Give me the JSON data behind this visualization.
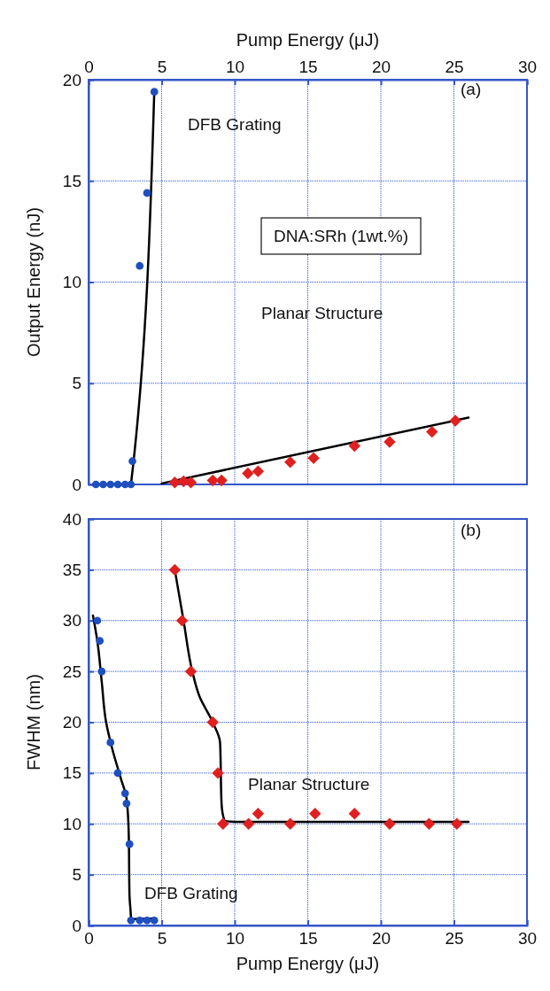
{
  "chart_data": [
    {
      "type": "scatter",
      "xlabel": "Pump Energy (μJ)",
      "ylabel": "Output Energy (nJ)",
      "xlim": [
        0,
        30
      ],
      "xticks": [
        0,
        5,
        10,
        15,
        20,
        25,
        30
      ],
      "ylim": [
        0,
        20
      ],
      "yticks": [
        0,
        5,
        10,
        15,
        20
      ],
      "grid": true,
      "series": [
        {
          "type": "scatter",
          "marker": "circle",
          "color": "#1f4fbf",
          "x": [
            0.5,
            1.0,
            1.5,
            2.0,
            2.5,
            2.9,
            3.0,
            3.5,
            4.0,
            4.5
          ],
          "values": [
            0,
            0,
            0,
            0,
            0,
            0,
            1.15,
            10.8,
            14.4,
            19.4
          ]
        },
        {
          "type": "scatter",
          "marker": "diamond",
          "color": "#e02020",
          "x": [
            5.9,
            6.5,
            7.0,
            8.5,
            9.1,
            10.9,
            11.6,
            13.8,
            15.4,
            18.2,
            20.6,
            23.5,
            25.1
          ],
          "values": [
            0.1,
            0.15,
            0.1,
            0.2,
            0.2,
            0.55,
            0.65,
            1.1,
            1.3,
            1.9,
            2.1,
            2.6,
            3.15
          ]
        },
        {
          "type": "line",
          "marker": "none",
          "color": "#000000",
          "x": [
            0.5,
            2.9,
            4.5
          ],
          "values": [
            0,
            0,
            19.5
          ]
        },
        {
          "type": "line",
          "marker": "none",
          "color": "#000000",
          "x": [
            5,
            26
          ],
          "values": [
            0.05,
            3.3
          ]
        }
      ],
      "annotations": [
        "DFB Grating",
        "Planar Structure",
        "DNA:SRh (1wt.%)",
        "(a)"
      ]
    },
    {
      "type": "scatter",
      "xlabel": "Pump Energy (μJ)",
      "ylabel": "FWHM (nm)",
      "xlim": [
        0,
        30
      ],
      "xticks": [
        0,
        5,
        10,
        15,
        20,
        25,
        30
      ],
      "ylim": [
        0,
        40
      ],
      "yticks": [
        0,
        5,
        10,
        15,
        20,
        25,
        30,
        35,
        40
      ],
      "grid": true,
      "series": [
        {
          "type": "scatter",
          "marker": "circle",
          "color": "#1f4fbf",
          "x": [
            0.6,
            0.77,
            0.9,
            1.5,
            2.0,
            2.5,
            2.6,
            2.8,
            2.9,
            3.5,
            4.0,
            4.5
          ],
          "values": [
            30,
            28,
            25,
            18,
            15,
            13,
            12,
            8,
            0.5,
            0.5,
            0.5,
            0.5
          ]
        },
        {
          "type": "scatter",
          "marker": "diamond",
          "color": "#e02020",
          "x": [
            5.9,
            6.4,
            7.0,
            8.5,
            8.85,
            9.2,
            10.95,
            11.6,
            13.8,
            15.5,
            18.2,
            20.6,
            23.3,
            25.2
          ],
          "values": [
            35,
            30,
            25,
            20,
            15,
            10,
            10,
            11,
            10,
            11,
            11,
            10,
            10,
            10
          ]
        },
        {
          "type": "line",
          "marker": "none",
          "color": "#000000",
          "x": [
            0.3,
            0.6,
            0.9,
            1.2,
            1.6,
            2.2,
            2.6,
            2.75,
            2.8,
            2.9,
            4.5
          ],
          "values": [
            30.5,
            28,
            24,
            20,
            17.5,
            14.5,
            12.5,
            9,
            3,
            0.6,
            0.7
          ]
        },
        {
          "type": "line",
          "marker": "none",
          "color": "#000000",
          "x": [
            5.9,
            6.5,
            7.1,
            7.6,
            8.5,
            9.0,
            9.1,
            9.3,
            10,
            26
          ],
          "values": [
            35,
            30,
            25,
            22.5,
            20,
            18,
            12,
            10.3,
            10.2,
            10.2
          ]
        }
      ],
      "annotations": [
        "Planar Structure",
        "DFB Grating",
        "(b)"
      ]
    }
  ]
}
